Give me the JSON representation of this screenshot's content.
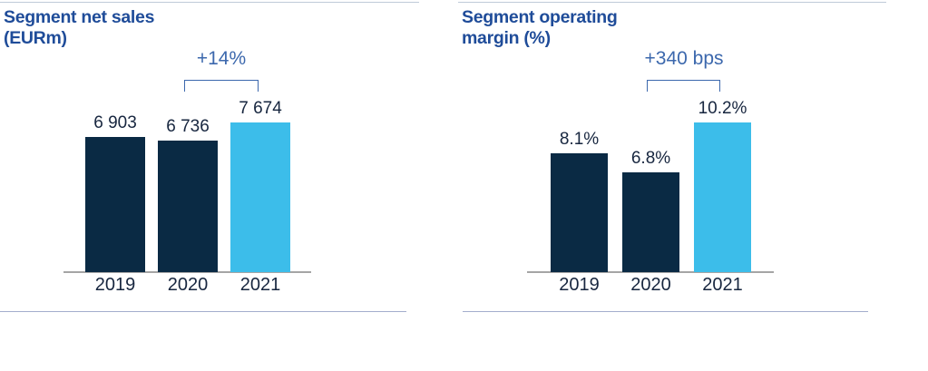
{
  "colors": {
    "bar_default": "#0a2a44",
    "bar_highlight": "#3cbdea",
    "title_blue": "#1f4c99",
    "annotation_blue": "#3c68ad",
    "label_navy": "#17263f",
    "axis_gray": "#a5a5a5",
    "top_rule": "#bfcad8",
    "bottom_rule": "#a3adcd"
  },
  "chart_data": [
    {
      "type": "bar",
      "title": "Segment net sales (EURm)",
      "title_lines": [
        "Segment net sales",
        "(EURm)"
      ],
      "categories": [
        "2019",
        "2020",
        "2021"
      ],
      "values": [
        6903,
        6736,
        7674
      ],
      "value_labels": [
        "6 903",
        "6 736",
        "7 674"
      ],
      "unit": "EURm",
      "ylim": [
        0,
        7674
      ],
      "grid": false,
      "legend": false,
      "highlight_index": 2,
      "annotation": {
        "text": "+14%",
        "from": "2020",
        "to": "2021"
      }
    },
    {
      "type": "bar",
      "title": "Segment operating margin (%)",
      "title_lines": [
        "Segment operating",
        "margin (%)"
      ],
      "categories": [
        "2019",
        "2020",
        "2021"
      ],
      "values": [
        8.1,
        6.8,
        10.2
      ],
      "value_labels": [
        "8.1%",
        "6.8%",
        "10.2%"
      ],
      "unit": "%",
      "ylim": [
        0,
        10.2
      ],
      "grid": false,
      "legend": false,
      "highlight_index": 2,
      "annotation": {
        "text": "+340 bps",
        "from": "2020",
        "to": "2021"
      }
    }
  ]
}
